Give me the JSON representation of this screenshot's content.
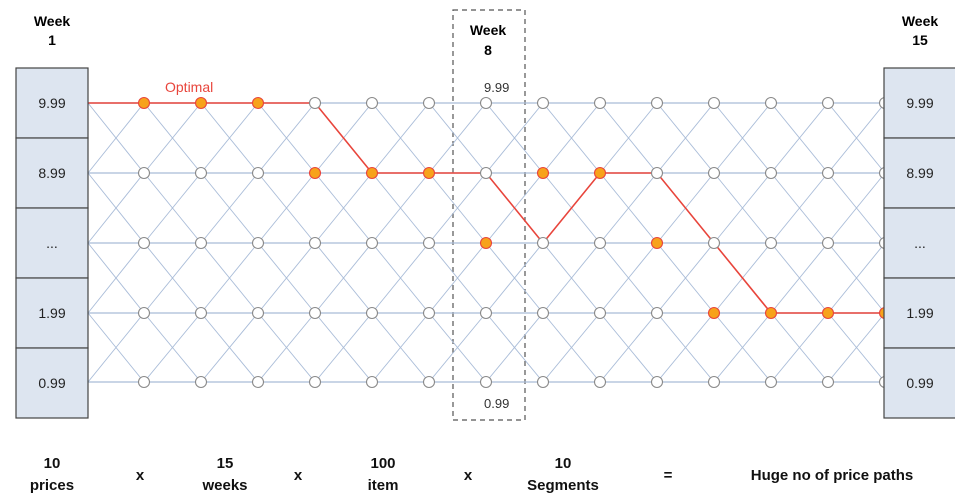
{
  "week_headers": {
    "left": {
      "line1": "Week",
      "line2": "1"
    },
    "middle": {
      "line1": "Week",
      "line2": "8"
    },
    "right": {
      "line1": "Week",
      "line2": "15"
    }
  },
  "price_boxes": [
    "9.99",
    "8.99",
    "...",
    "1.99",
    "0.99"
  ],
  "middle_labels": {
    "top": "9.99",
    "bottom": "0.99"
  },
  "optimal_label": "Optimal",
  "colors": {
    "grid_line": "#a9bcd8",
    "box_fill": "#dde5f0",
    "box_border": "#444444",
    "optimal_path": "#e8453c",
    "optimal_node": "#f7a21b",
    "node_fill": "#ffffff",
    "node_border": "#8a8a8a"
  },
  "optimal_path_levels": [
    0,
    0,
    0,
    0,
    1,
    1,
    1,
    2,
    1,
    1,
    2,
    3,
    3,
    3,
    3
  ],
  "bottom_formula": {
    "term1": {
      "line1": "10",
      "line2": "prices"
    },
    "op1": "x",
    "term2": {
      "line1": "15",
      "line2": "weeks"
    },
    "op2": "x",
    "term3": {
      "line1": "100",
      "line2": "item"
    },
    "op3": "x",
    "term4": {
      "line1": "10",
      "line2": "Segments"
    },
    "equals": "=",
    "result": "Huge no of price paths"
  }
}
